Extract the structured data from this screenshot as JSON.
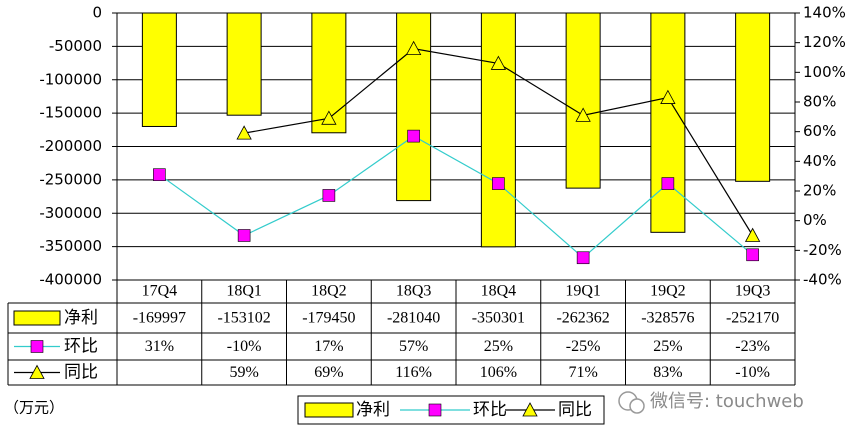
{
  "chart_data": {
    "type": "bar",
    "categories": [
      "17Q4",
      "18Q1",
      "18Q2",
      "18Q3",
      "18Q4",
      "19Q1",
      "19Q2",
      "19Q3"
    ],
    "series": [
      {
        "name": "净利",
        "type": "bar",
        "axis": "y",
        "color": "#ffff00",
        "values": [
          -169997,
          -153102,
          -179450,
          -281040,
          -350301,
          -262362,
          -328576,
          -252170
        ]
      },
      {
        "name": "环比",
        "type": "line",
        "axis": "y2",
        "color": "#33cccc",
        "marker": "square",
        "marker_color": "#ff00ff",
        "values": [
          31,
          -10,
          17,
          57,
          25,
          -25,
          25,
          -23
        ],
        "value_labels": [
          "31%",
          "-10%",
          "17%",
          "57%",
          "25%",
          "-25%",
          "25%",
          "-23%"
        ]
      },
      {
        "name": "同比",
        "type": "line",
        "axis": "y2",
        "color": "#000000",
        "marker": "triangle",
        "marker_color": "#ffff00",
        "values": [
          null,
          59,
          69,
          116,
          106,
          71,
          83,
          -10
        ],
        "value_labels": [
          null,
          "59%",
          "69%",
          "116%",
          "106%",
          "71%",
          "83%",
          "-10%"
        ]
      }
    ],
    "ylim": [
      -400000,
      0
    ],
    "yticks": [
      0,
      -50000,
      -100000,
      -150000,
      -200000,
      -250000,
      -300000,
      -350000,
      -400000
    ],
    "y2lim": [
      -40,
      140
    ],
    "y2ticks": [
      {
        "value": 140,
        "label": "140%"
      },
      {
        "value": 120,
        "label": "120%"
      },
      {
        "value": 100,
        "label": "100%"
      },
      {
        "value": 80,
        "label": "80%"
      },
      {
        "value": 60,
        "label": "60%"
      },
      {
        "value": 40,
        "label": "40%"
      },
      {
        "value": 20,
        "label": "20%"
      },
      {
        "value": 0,
        "label": "0%"
      },
      {
        "value": -20,
        "label": "-20%"
      },
      {
        "value": -40,
        "label": "-40%"
      }
    ],
    "grid": true,
    "unit_label": "（万元）",
    "watermark": "微信号: touchweb"
  }
}
